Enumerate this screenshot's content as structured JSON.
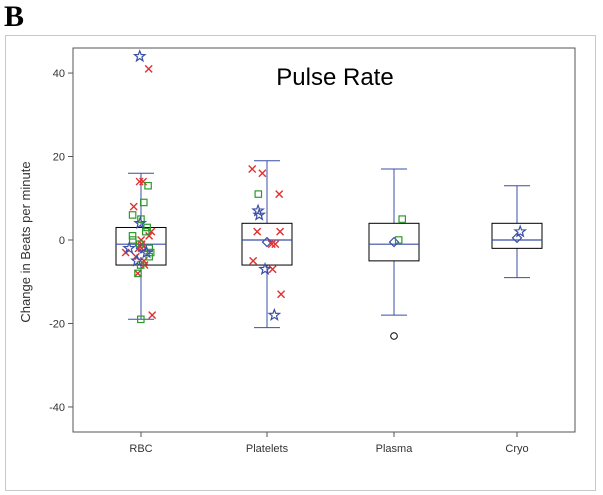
{
  "figure": {
    "panel_label": "B"
  },
  "chart_data": {
    "type": "box",
    "title": "Pulse Rate",
    "xlabel": "",
    "ylabel": "Change in Beats per minute",
    "ylim": [
      -46,
      46
    ],
    "yticks": [
      -40,
      -20,
      0,
      20,
      40
    ],
    "grid": false,
    "legend": "none",
    "colors": {
      "box": "#000000",
      "whisker": "#3a4fa8",
      "mean": "#3a4fa8",
      "series_x": "#e03030",
      "series_square": "#2e9a2e",
      "series_star": "#3a4fa8",
      "outlier": "#000000"
    },
    "categories": [
      "RBC",
      "Platelets",
      "Plasma",
      "Cryo"
    ],
    "boxes": [
      {
        "category": "RBC",
        "min": -19,
        "q1": -6,
        "median": -1,
        "q3": 3,
        "max": 16,
        "mean": -2,
        "outliers": []
      },
      {
        "category": "Platelets",
        "min": -21,
        "q1": -6,
        "median": 0,
        "q3": 4,
        "max": 19,
        "mean": -0.5,
        "outliers": []
      },
      {
        "category": "Plasma",
        "min": -18,
        "q1": -5,
        "median": -1,
        "q3": 4,
        "max": 17,
        "mean": -0.5,
        "outliers": [
          -23
        ]
      },
      {
        "category": "Cryo",
        "min": -9,
        "q1": -2,
        "median": 0,
        "q3": 4,
        "max": 13,
        "mean": 0.5,
        "outliers": []
      }
    ],
    "points": {
      "RBC": {
        "x": [
          41,
          14,
          14,
          8,
          2,
          1,
          0,
          -1,
          -2,
          -3,
          -5,
          -6,
          -8,
          -18,
          -4,
          -2
        ],
        "square": [
          13,
          9,
          6,
          5,
          3,
          2,
          0,
          -1,
          -3,
          -4,
          -6,
          -8,
          -19,
          1,
          -2
        ],
        "star": [
          44,
          4,
          -2,
          -3,
          -5
        ]
      },
      "Platelets": {
        "x": [
          17,
          16,
          11,
          2,
          2,
          -1,
          -1,
          -5,
          -7,
          -13
        ],
        "square": [
          11
        ],
        "star": [
          7,
          6,
          -7,
          -18
        ]
      },
      "Plasma": {
        "x": [],
        "square": [
          5,
          0
        ],
        "star": []
      },
      "Cryo": {
        "x": [],
        "square": [],
        "star": [
          2
        ]
      }
    }
  }
}
